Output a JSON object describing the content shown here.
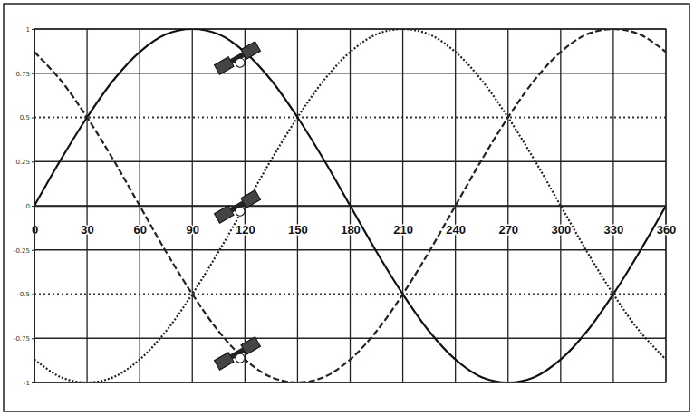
{
  "chart_data": {
    "type": "line",
    "x": [
      0,
      15,
      30,
      45,
      60,
      75,
      90,
      105,
      120,
      135,
      150,
      165,
      180,
      195,
      210,
      225,
      240,
      255,
      270,
      285,
      300,
      315,
      330,
      345,
      360
    ],
    "series": [
      {
        "color": "#111111",
        "line_style": "solid",
        "values": [
          0,
          0.26,
          0.5,
          0.71,
          0.87,
          0.97,
          1,
          0.97,
          0.87,
          0.71,
          0.5,
          0.26,
          0,
          -0.26,
          -0.5,
          -0.71,
          -0.87,
          -0.97,
          -1,
          -0.97,
          -0.87,
          -0.71,
          -0.5,
          -0.26,
          0
        ]
      },
      {
        "color": "#222222",
        "line_style": "dotted",
        "values": [
          -0.87,
          -0.97,
          -1,
          -0.97,
          -0.87,
          -0.71,
          -0.5,
          -0.26,
          0,
          0.26,
          0.5,
          0.71,
          0.87,
          0.97,
          1,
          0.97,
          0.87,
          0.71,
          0.5,
          0.26,
          0,
          -0.26,
          -0.5,
          -0.71,
          -0.87
        ]
      },
      {
        "color": "#222222",
        "line_style": "dashed",
        "values": [
          0.87,
          0.71,
          0.5,
          0.26,
          0,
          -0.26,
          -0.5,
          -0.71,
          -0.87,
          -0.97,
          -1,
          -0.97,
          -0.87,
          -0.71,
          -0.5,
          -0.26,
          0,
          0.26,
          0.5,
          0.71,
          0.87,
          0.97,
          1,
          0.97,
          0.87
        ]
      }
    ],
    "xlim": [
      0,
      360
    ],
    "xticks": [
      0,
      30,
      60,
      90,
      120,
      150,
      180,
      210,
      240,
      270,
      300,
      330,
      360
    ],
    "ylim": [
      -1,
      1
    ],
    "yticks": [
      -1,
      -0.75,
      -0.5,
      -0.25,
      0,
      0.25,
      0.5,
      0.75,
      1
    ],
    "hlines": [
      0.5,
      -0.5
    ],
    "grid": true
  }
}
